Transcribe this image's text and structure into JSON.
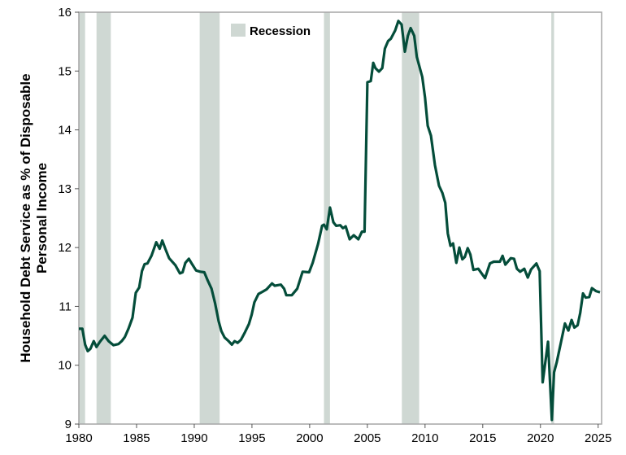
{
  "chart_data": {
    "type": "line",
    "title": "",
    "xlabel": "",
    "ylabel_lines": [
      "Household Debt Service as % of Disposable",
      "Personal Income"
    ],
    "xlim": [
      1980,
      2025.3
    ],
    "ylim": [
      9,
      16
    ],
    "xticks": [
      1980,
      1985,
      1990,
      1995,
      2000,
      2005,
      2010,
      2015,
      2020,
      2025
    ],
    "yticks": [
      9,
      10,
      11,
      12,
      13,
      14,
      15,
      16
    ],
    "legend": {
      "label": "Recession",
      "placement": "top-center"
    },
    "colors": {
      "line": "#044d3a",
      "recession": "#cfd8d3",
      "frame": "#a6a6a6"
    },
    "recessions": [
      [
        1980.0,
        1980.54
      ],
      [
        1981.53,
        1982.77
      ],
      [
        1990.47,
        1992.2
      ],
      [
        2001.24,
        2001.76
      ],
      [
        2007.99,
        2009.49
      ],
      [
        2020.94,
        2021.18
      ]
    ],
    "series": [
      {
        "name": "Household Debt Service",
        "points": [
          [
            1980.0,
            10.62
          ],
          [
            1980.3,
            10.62
          ],
          [
            1980.54,
            10.35
          ],
          [
            1980.77,
            10.24
          ],
          [
            1981.0,
            10.28
          ],
          [
            1981.29,
            10.41
          ],
          [
            1981.53,
            10.31
          ],
          [
            1981.83,
            10.4
          ],
          [
            1982.23,
            10.5
          ],
          [
            1982.58,
            10.41
          ],
          [
            1983.0,
            10.34
          ],
          [
            1983.43,
            10.36
          ],
          [
            1983.71,
            10.41
          ],
          [
            1983.99,
            10.48
          ],
          [
            1984.3,
            10.62
          ],
          [
            1984.65,
            10.81
          ],
          [
            1984.93,
            11.23
          ],
          [
            1985.23,
            11.32
          ],
          [
            1985.47,
            11.6
          ],
          [
            1985.7,
            11.72
          ],
          [
            1985.94,
            11.73
          ],
          [
            1986.29,
            11.86
          ],
          [
            1986.71,
            12.09
          ],
          [
            1987.0,
            11.98
          ],
          [
            1987.23,
            12.12
          ],
          [
            1987.51,
            11.97
          ],
          [
            1987.82,
            11.82
          ],
          [
            1988.36,
            11.7
          ],
          [
            1988.76,
            11.56
          ],
          [
            1988.99,
            11.58
          ],
          [
            1989.23,
            11.74
          ],
          [
            1989.53,
            11.81
          ],
          [
            1989.81,
            11.72
          ],
          [
            1990.16,
            11.61
          ],
          [
            1990.52,
            11.59
          ],
          [
            1990.87,
            11.58
          ],
          [
            1991.17,
            11.44
          ],
          [
            1991.5,
            11.3
          ],
          [
            1991.81,
            11.05
          ],
          [
            1992.11,
            10.75
          ],
          [
            1992.35,
            10.58
          ],
          [
            1992.63,
            10.47
          ],
          [
            1992.98,
            10.41
          ],
          [
            1993.26,
            10.35
          ],
          [
            1993.5,
            10.41
          ],
          [
            1993.76,
            10.38
          ],
          [
            1994.04,
            10.43
          ],
          [
            1994.39,
            10.56
          ],
          [
            1994.74,
            10.7
          ],
          [
            1994.98,
            10.86
          ],
          [
            1995.21,
            11.07
          ],
          [
            1995.56,
            11.21
          ],
          [
            1995.92,
            11.25
          ],
          [
            1996.27,
            11.29
          ],
          [
            1996.74,
            11.39
          ],
          [
            1996.97,
            11.35
          ],
          [
            1997.51,
            11.37
          ],
          [
            1997.79,
            11.3
          ],
          [
            1997.98,
            11.19
          ],
          [
            1998.45,
            11.19
          ],
          [
            1998.92,
            11.3
          ],
          [
            1999.39,
            11.59
          ],
          [
            1999.95,
            11.58
          ],
          [
            2000.26,
            11.74
          ],
          [
            2000.73,
            12.06
          ],
          [
            2001.08,
            12.37
          ],
          [
            2001.24,
            12.39
          ],
          [
            2001.48,
            12.31
          ],
          [
            2001.76,
            12.68
          ],
          [
            2002.06,
            12.43
          ],
          [
            2002.3,
            12.37
          ],
          [
            2002.65,
            12.38
          ],
          [
            2002.88,
            12.33
          ],
          [
            2003.12,
            12.36
          ],
          [
            2003.47,
            12.14
          ],
          [
            2003.82,
            12.21
          ],
          [
            2004.22,
            12.14
          ],
          [
            2004.53,
            12.27
          ],
          [
            2004.76,
            12.27
          ],
          [
            2005.0,
            14.81
          ],
          [
            2005.3,
            14.83
          ],
          [
            2005.51,
            15.14
          ],
          [
            2005.7,
            15.05
          ],
          [
            2006.0,
            14.99
          ],
          [
            2006.29,
            15.05
          ],
          [
            2006.52,
            15.38
          ],
          [
            2006.8,
            15.51
          ],
          [
            2007.04,
            15.55
          ],
          [
            2007.41,
            15.69
          ],
          [
            2007.69,
            15.85
          ],
          [
            2007.97,
            15.79
          ],
          [
            2008.25,
            15.33
          ],
          [
            2008.51,
            15.6
          ],
          [
            2008.75,
            15.73
          ],
          [
            2009.06,
            15.6
          ],
          [
            2009.29,
            15.24
          ],
          [
            2009.76,
            14.9
          ],
          [
            2010.0,
            14.55
          ],
          [
            2010.23,
            14.07
          ],
          [
            2010.51,
            13.9
          ],
          [
            2010.86,
            13.4
          ],
          [
            2011.21,
            13.05
          ],
          [
            2011.5,
            12.93
          ],
          [
            2011.75,
            12.76
          ],
          [
            2011.97,
            12.24
          ],
          [
            2012.2,
            12.03
          ],
          [
            2012.43,
            12.07
          ],
          [
            2012.71,
            11.74
          ],
          [
            2012.97,
            12.0
          ],
          [
            2013.23,
            11.8
          ],
          [
            2013.44,
            11.84
          ],
          [
            2013.7,
            11.99
          ],
          [
            2013.93,
            11.88
          ],
          [
            2014.19,
            11.62
          ],
          [
            2014.61,
            11.64
          ],
          [
            2015.2,
            11.48
          ],
          [
            2015.62,
            11.73
          ],
          [
            2015.95,
            11.76
          ],
          [
            2016.49,
            11.76
          ],
          [
            2016.72,
            11.86
          ],
          [
            2016.96,
            11.71
          ],
          [
            2017.43,
            11.82
          ],
          [
            2017.71,
            11.81
          ],
          [
            2017.96,
            11.64
          ],
          [
            2018.24,
            11.59
          ],
          [
            2018.6,
            11.64
          ],
          [
            2018.9,
            11.49
          ],
          [
            2019.19,
            11.63
          ],
          [
            2019.65,
            11.73
          ],
          [
            2019.93,
            11.6
          ],
          [
            2020.19,
            9.71
          ],
          [
            2020.66,
            10.4
          ],
          [
            2020.99,
            9.07
          ],
          [
            2021.18,
            9.88
          ],
          [
            2021.41,
            10.05
          ],
          [
            2022.12,
            10.71
          ],
          [
            2022.42,
            10.59
          ],
          [
            2022.7,
            10.77
          ],
          [
            2022.94,
            10.64
          ],
          [
            2023.22,
            10.68
          ],
          [
            2023.45,
            10.89
          ],
          [
            2023.69,
            11.22
          ],
          [
            2023.92,
            11.15
          ],
          [
            2024.23,
            11.16
          ],
          [
            2024.46,
            11.31
          ],
          [
            2024.81,
            11.26
          ],
          [
            2025.16,
            11.24
          ]
        ]
      }
    ]
  }
}
